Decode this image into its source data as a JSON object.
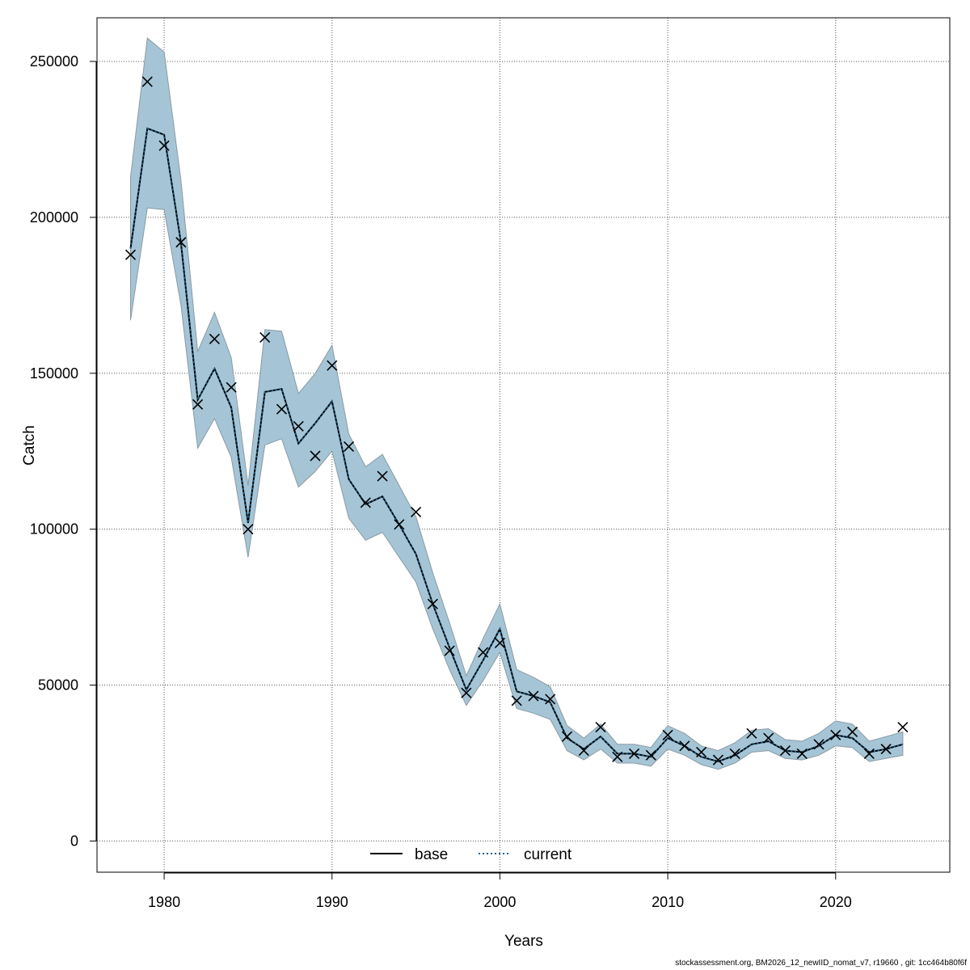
{
  "chart_data": {
    "type": "line",
    "xlabel": "Years",
    "ylabel": "Catch",
    "xlim": [
      1976,
      2026.8
    ],
    "ylim": [
      -10000,
      264000
    ],
    "x_ticks": [
      1980,
      1990,
      2000,
      2010,
      2020
    ],
    "y_ticks": [
      0,
      50000,
      100000,
      150000,
      200000,
      250000
    ],
    "grid": true,
    "legend_position": "bottom-center",
    "band_color": "#a5c5d6",
    "band_edge_color": "#8a9aa3",
    "line_color": "#000000",
    "current_line_color": "#1f5f8b",
    "series": [
      {
        "name": "base",
        "style": "solid",
        "x": [
          1978,
          1979,
          1980,
          1981,
          1982,
          1983,
          1984,
          1985,
          1986,
          1987,
          1988,
          1989,
          1990,
          1991,
          1992,
          1993,
          1994,
          1995,
          1996,
          1997,
          1998,
          1999,
          2000,
          2001,
          2002,
          2003,
          2004,
          2005,
          2006,
          2007,
          2008,
          2009,
          2010,
          2011,
          2012,
          2013,
          2014,
          2015,
          2016,
          2017,
          2018,
          2019,
          2020,
          2021,
          2022,
          2023,
          2024
        ],
        "y": [
          190000,
          228500,
          226500,
          192000,
          141500,
          151500,
          139000,
          102000,
          144000,
          145000,
          127500,
          134000,
          141000,
          116000,
          108000,
          110500,
          101500,
          92000,
          76000,
          62000,
          48500,
          58000,
          68000,
          48000,
          46500,
          44500,
          33000,
          29500,
          33500,
          28000,
          28000,
          27000,
          33000,
          30500,
          27000,
          25500,
          27500,
          31000,
          32000,
          29000,
          28500,
          30500,
          34000,
          33000,
          28500,
          29500,
          31000
        ]
      },
      {
        "name": "current",
        "style": "dotted",
        "x": [
          1978,
          1979,
          1980,
          1981,
          1982,
          1983,
          1984,
          1985,
          1986,
          1987,
          1988,
          1989,
          1990,
          1991,
          1992,
          1993,
          1994,
          1995,
          1996,
          1997,
          1998,
          1999,
          2000,
          2001,
          2002,
          2003,
          2004,
          2005,
          2006,
          2007,
          2008,
          2009,
          2010,
          2011,
          2012,
          2013,
          2014,
          2015,
          2016,
          2017,
          2018,
          2019,
          2020,
          2021,
          2022,
          2023,
          2024
        ],
        "y": [
          190000,
          228500,
          226500,
          192000,
          141500,
          151500,
          139000,
          102000,
          144000,
          145000,
          127500,
          134000,
          141000,
          116000,
          108000,
          110500,
          101500,
          92000,
          76000,
          62000,
          48500,
          58000,
          68000,
          48000,
          46500,
          44500,
          33000,
          29500,
          33500,
          28000,
          28000,
          27000,
          33000,
          30500,
          27000,
          25500,
          27500,
          31000,
          32000,
          29000,
          28500,
          30500,
          34000,
          33000,
          28500,
          29500,
          31000
        ]
      }
    ],
    "band": {
      "x": [
        1978,
        1979,
        1980,
        1981,
        1982,
        1983,
        1984,
        1985,
        1986,
        1987,
        1988,
        1989,
        1990,
        1991,
        1992,
        1993,
        1994,
        1995,
        1996,
        1997,
        1998,
        1999,
        2000,
        2001,
        2002,
        2003,
        2004,
        2005,
        2006,
        2007,
        2008,
        2009,
        2010,
        2011,
        2012,
        2013,
        2014,
        2015,
        2016,
        2017,
        2018,
        2019,
        2020,
        2021,
        2022,
        2023,
        2024
      ],
      "upper": [
        213000,
        257500,
        253000,
        212000,
        157000,
        169500,
        155000,
        114000,
        164000,
        163500,
        143500,
        150000,
        159000,
        130500,
        120000,
        124000,
        114000,
        104000,
        86000,
        70000,
        53000,
        65000,
        76000,
        55000,
        52500,
        49500,
        37000,
        33000,
        37500,
        31000,
        31000,
        30000,
        37000,
        34500,
        30500,
        29000,
        31500,
        35500,
        36000,
        32500,
        32000,
        34500,
        38500,
        37500,
        32000,
        33500,
        35000
      ],
      "lower": [
        167000,
        203000,
        202500,
        172000,
        126000,
        135500,
        123000,
        91000,
        127000,
        129000,
        113500,
        118500,
        125000,
        103500,
        96500,
        99000,
        91000,
        83000,
        68000,
        55000,
        43500,
        51500,
        60500,
        42500,
        41000,
        39000,
        29000,
        26000,
        29500,
        25000,
        25000,
        24000,
        29500,
        27500,
        24500,
        23000,
        25000,
        28500,
        29000,
        26500,
        26000,
        27500,
        30500,
        30000,
        25500,
        26500,
        27500
      ]
    },
    "observed": {
      "marker": "x",
      "x": [
        1978,
        1979,
        1980,
        1981,
        1982,
        1983,
        1984,
        1985,
        1986,
        1987,
        1988,
        1989,
        1990,
        1991,
        1992,
        1993,
        1994,
        1995,
        1996,
        1997,
        1998,
        1999,
        2000,
        2001,
        2002,
        2003,
        2004,
        2005,
        2006,
        2007,
        2008,
        2009,
        2010,
        2011,
        2012,
        2013,
        2014,
        2015,
        2016,
        2017,
        2018,
        2019,
        2020,
        2021,
        2022,
        2023,
        2024
      ],
      "y": [
        188000,
        243500,
        223000,
        192000,
        140000,
        161000,
        145500,
        100000,
        161500,
        138500,
        133000,
        123500,
        152500,
        126500,
        108500,
        117000,
        101500,
        105500,
        76000,
        61000,
        47500,
        60500,
        63500,
        45000,
        46500,
        45500,
        33500,
        29000,
        36500,
        27000,
        28000,
        27500,
        34000,
        30500,
        28500,
        26000,
        28000,
        34500,
        33000,
        29000,
        28000,
        31000,
        34000,
        35000,
        28000,
        29500,
        36500
      ]
    },
    "footer": "stockassessment.org, BM2026_12_newIID_nomat_v7, r19660 , git: 1cc464b80f6f"
  }
}
